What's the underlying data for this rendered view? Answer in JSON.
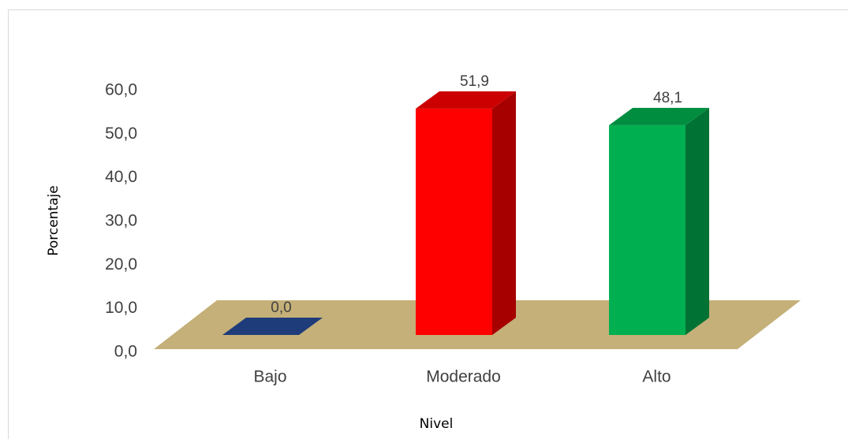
{
  "chart_data": {
    "type": "bar3d",
    "categories": [
      "Bajo",
      "Moderado",
      "Alto"
    ],
    "values": [
      0,
      51.9,
      48.1
    ],
    "value_labels": [
      "0,0",
      "51,9",
      "48,1"
    ],
    "colors": [
      "#1f3c7a",
      "#ff0000",
      "#00b050"
    ],
    "ylim": [
      0,
      60
    ],
    "yticks": [
      {
        "value": 0,
        "label": "0,0"
      },
      {
        "value": 10,
        "label": "10,0"
      },
      {
        "value": 20,
        "label": "20,0"
      },
      {
        "value": 30,
        "label": "30,0"
      },
      {
        "value": 40,
        "label": "40,0"
      },
      {
        "value": 50,
        "label": "50,0"
      },
      {
        "value": 60,
        "label": "60,0"
      }
    ],
    "y_label": "Porcentaje",
    "x_label": "Nivel"
  }
}
